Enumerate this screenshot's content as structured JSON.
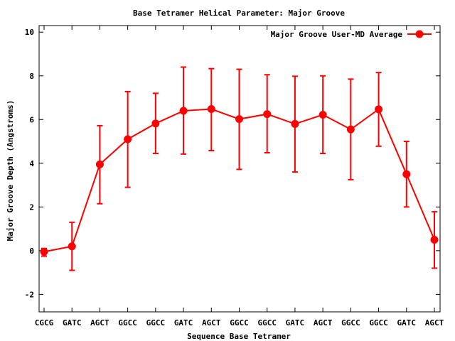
{
  "chart_data": {
    "type": "line",
    "title": "Base Tetramer Helical Parameter: Major Groove",
    "xlabel": "Sequence Base Tetramer",
    "ylabel": "Major Groove Depth (Angstroms)",
    "categories": [
      "CGCG",
      "GATC",
      "AGCT",
      "GGCC",
      "GGCC",
      "GATC",
      "AGCT",
      "GGCC",
      "GGCC",
      "GATC",
      "AGCT",
      "GGCC",
      "GGCC",
      "GATC",
      "AGCT"
    ],
    "ylim": [
      -2.8,
      10.3
    ],
    "yticks": [
      -2,
      0,
      2,
      4,
      6,
      8,
      10
    ],
    "grid": false,
    "legend_position": "top-right",
    "series": [
      {
        "name": "Major Groove User-MD Average",
        "color": "#ff0000",
        "marker": "circle",
        "values": [
          -0.05,
          0.2,
          3.95,
          5.1,
          5.82,
          6.4,
          6.48,
          6.02,
          6.25,
          5.8,
          6.22,
          5.55,
          6.47,
          3.5,
          0.5
        ],
        "err_low": [
          -0.25,
          -0.9,
          2.15,
          2.9,
          4.45,
          4.42,
          4.58,
          3.72,
          4.48,
          3.6,
          4.45,
          3.25,
          4.78,
          2.0,
          -0.8
        ],
        "err_high": [
          0.1,
          1.3,
          5.72,
          7.28,
          7.2,
          8.4,
          8.33,
          8.3,
          8.05,
          7.98,
          8.0,
          7.85,
          8.15,
          5.0,
          1.78
        ]
      }
    ]
  }
}
